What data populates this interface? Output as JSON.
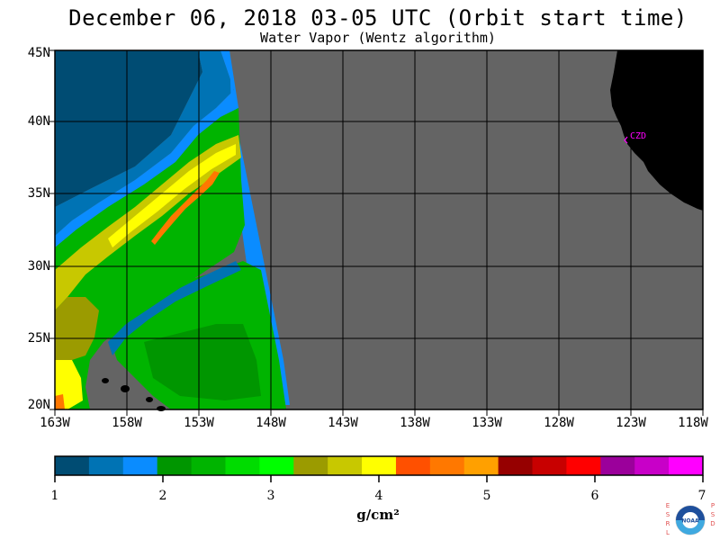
{
  "title": "December 06, 2018  03-05 UTC  (Orbit start time)",
  "subtitle": "Water Vapor (Wentz algorithm)",
  "map": {
    "lat_labels": [
      "45N",
      "40N",
      "35N",
      "30N",
      "25N",
      "20N"
    ],
    "lon_labels": [
      "163W",
      "158W",
      "153W",
      "148W",
      "143W",
      "138W",
      "133W",
      "128W",
      "123W",
      "118W"
    ],
    "station_label": "CZD",
    "colors": {
      "land": "#000000",
      "no_data": "#646464",
      "grid": "#000000",
      "station": "#ff00ff"
    }
  },
  "colorbar": {
    "tick_labels": [
      "1",
      "2",
      "3",
      "4",
      "5",
      "6",
      "7"
    ],
    "units": "g/cm²",
    "colors": [
      "#004c73",
      "#0073b4",
      "#0a8cff",
      "#009600",
      "#00b400",
      "#00dc00",
      "#00ff00",
      "#9b9b00",
      "#c8c800",
      "#ffff00",
      "#ff5000",
      "#ff7800",
      "#ffa000",
      "#960000",
      "#c80000",
      "#ff0000",
      "#9b009b",
      "#c800c8",
      "#ff00ff"
    ]
  },
  "logo": {
    "left_letters": "ESRL",
    "right_letters": "PSD",
    "center_text": "NOAA"
  }
}
